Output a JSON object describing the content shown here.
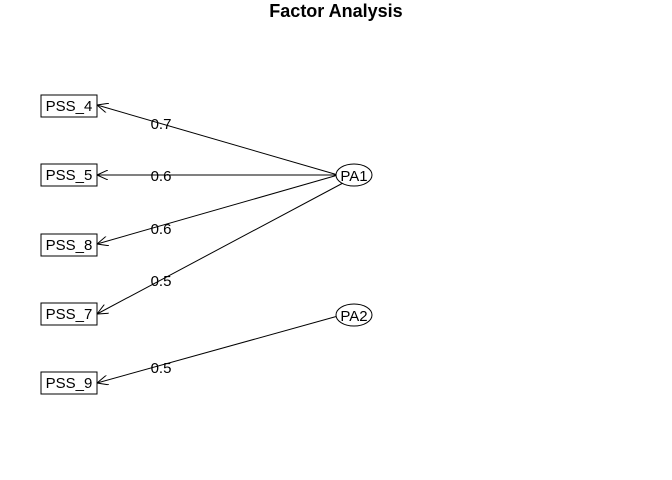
{
  "title": "Factor Analysis",
  "factors": [
    {
      "id": "PA1",
      "label": "PA1"
    },
    {
      "id": "PA2",
      "label": "PA2"
    }
  ],
  "variables": [
    {
      "id": "PSS_4",
      "label": "PSS_4"
    },
    {
      "id": "PSS_5",
      "label": "PSS_5"
    },
    {
      "id": "PSS_8",
      "label": "PSS_8"
    },
    {
      "id": "PSS_7",
      "label": "PSS_7"
    },
    {
      "id": "PSS_9",
      "label": "PSS_9"
    }
  ],
  "loadings": [
    {
      "from": "PA1",
      "to": "PSS_4",
      "label": "0.7"
    },
    {
      "from": "PA1",
      "to": "PSS_5",
      "label": "0.6"
    },
    {
      "from": "PA1",
      "to": "PSS_8",
      "label": "0.6"
    },
    {
      "from": "PA1",
      "to": "PSS_7",
      "label": "0.5"
    },
    {
      "from": "PA2",
      "to": "PSS_9",
      "label": "0.5"
    }
  ]
}
